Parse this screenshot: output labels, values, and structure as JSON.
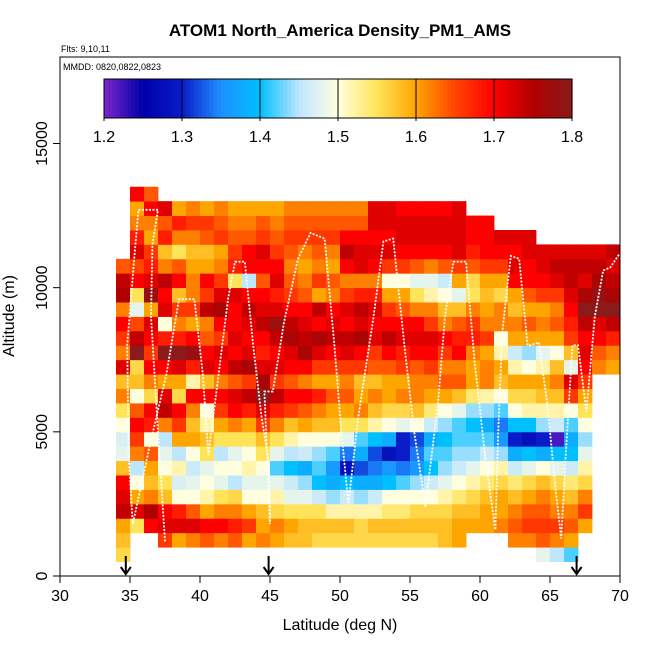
{
  "chart_data": {
    "type": "heatmap",
    "title": "ATOM1 North_America Density_PM1_AMS",
    "notes": [
      "Flts: 9,10,11",
      "MMDD: 0820,0822,0823"
    ],
    "xlabel": "Latitude (deg N)",
    "ylabel": "Altitude (m)",
    "xlim": [
      30,
      70
    ],
    "ylim": [
      0,
      18000
    ],
    "xticks": [
      30,
      35,
      40,
      45,
      50,
      55,
      60,
      65,
      70
    ],
    "yticks": [
      0,
      5000,
      10000,
      15000
    ],
    "colorbar": {
      "range": [
        1.2,
        1.8
      ],
      "ticks": [
        "1.2",
        "1.3",
        "1.4",
        "1.5",
        "1.6",
        "1.7",
        "1.8"
      ],
      "colors": [
        "#7d26cd",
        "#0000a8",
        "#0a1cc8",
        "#1e90ff",
        "#00bfff",
        "#bfe6ff",
        "#ffffe0",
        "#ffe45a",
        "#ffa500",
        "#ff4500",
        "#ff0000",
        "#b00000",
        "#8b1a1a"
      ]
    },
    "markers_lat": [
      34.7,
      44.9,
      66.9
    ],
    "bin_size": {
      "lat": 1,
      "alt": 500
    },
    "columns": [
      {
        "lat0": 34,
        "alt0": 500,
        "v": [
          1.56,
          1.58,
          1.6,
          1.74,
          1.72,
          1.7,
          1.58,
          1.48,
          1.47,
          1.5,
          1.55,
          1.62,
          1.58,
          1.72,
          1.62,
          1.66,
          1.7,
          1.62,
          1.75,
          1.74,
          1.64
        ]
      },
      {
        "lat0": 35,
        "alt0": 1500,
        "v": [
          1.55,
          1.72,
          1.6,
          1.5,
          1.45,
          1.62,
          1.66,
          1.7,
          1.64,
          1.5,
          1.58,
          1.56,
          1.8,
          1.74,
          1.65,
          1.48,
          1.55,
          1.7,
          1.65,
          1.72,
          1.68,
          1.62,
          1.6,
          1.7
        ]
      },
      {
        "lat0": 36,
        "alt0": 1500,
        "v": [
          1.7,
          1.75,
          1.62,
          1.58,
          1.6,
          1.64,
          1.5,
          1.68,
          1.7,
          1.56,
          1.62,
          1.7,
          1.66,
          1.7,
          1.72,
          1.6,
          1.78,
          1.72,
          1.68,
          1.66,
          1.6,
          1.62,
          1.7,
          1.64
        ]
      },
      {
        "lat0": 37,
        "alt0": 1000,
        "v": [
          1.66,
          1.72,
          1.7,
          1.58,
          1.55,
          1.5,
          1.48,
          1.45,
          1.62,
          1.74,
          1.72,
          1.6,
          1.7,
          1.82,
          1.68,
          1.5,
          1.72,
          1.7,
          1.74,
          1.62,
          1.58,
          1.68,
          1.64,
          1.72
        ]
      },
      {
        "lat0": 38,
        "alt0": 1000,
        "v": [
          1.6,
          1.72,
          1.68,
          1.5,
          1.47,
          1.52,
          1.45,
          1.6,
          1.66,
          1.7,
          1.56,
          1.6,
          1.72,
          1.8,
          1.68,
          1.62,
          1.66,
          1.58,
          1.7,
          1.64,
          1.55,
          1.62,
          1.68,
          1.6
        ]
      },
      {
        "lat0": 39,
        "alt0": 1000,
        "v": [
          1.62,
          1.72,
          1.64,
          1.5,
          1.48,
          1.46,
          1.5,
          1.6,
          1.58,
          1.62,
          1.7,
          1.52,
          1.68,
          1.78,
          1.7,
          1.6,
          1.66,
          1.62,
          1.62,
          1.6,
          1.58,
          1.62,
          1.66,
          1.62
        ]
      },
      {
        "lat0": 40,
        "alt0": 1000,
        "v": [
          1.64,
          1.7,
          1.6,
          1.52,
          1.5,
          1.48,
          1.55,
          1.58,
          1.52,
          1.5,
          1.7,
          1.58,
          1.72,
          1.7,
          1.64,
          1.62,
          1.74,
          1.66,
          1.7,
          1.6,
          1.58,
          1.64,
          1.66,
          1.6
        ]
      },
      {
        "lat0": 41,
        "alt0": 1000,
        "v": [
          1.62,
          1.7,
          1.62,
          1.55,
          1.48,
          1.5,
          1.45,
          1.55,
          1.6,
          1.66,
          1.7,
          1.62,
          1.7,
          1.72,
          1.66,
          1.7,
          1.76,
          1.72,
          1.66,
          1.62,
          1.6,
          1.66,
          1.64,
          1.62
        ]
      },
      {
        "lat0": 42,
        "alt0": 1000,
        "v": [
          1.64,
          1.68,
          1.62,
          1.56,
          1.45,
          1.5,
          1.48,
          1.55,
          1.62,
          1.7,
          1.72,
          1.64,
          1.74,
          1.7,
          1.72,
          1.7,
          1.7,
          1.72,
          1.55,
          1.68,
          1.66,
          1.64,
          1.62,
          1.6
        ]
      },
      {
        "lat0": 43,
        "alt0": 1000,
        "v": [
          1.6,
          1.66,
          1.6,
          1.5,
          1.48,
          1.52,
          1.5,
          1.55,
          1.6,
          1.68,
          1.74,
          1.66,
          1.76,
          1.72,
          1.7,
          1.72,
          1.74,
          1.7,
          1.45,
          1.7,
          1.7,
          1.64,
          1.62,
          1.6
        ]
      },
      {
        "lat0": 44,
        "alt0": 1000,
        "v": [
          1.62,
          1.6,
          1.58,
          1.5,
          1.48,
          1.5,
          1.55,
          1.58,
          1.66,
          1.72,
          1.8,
          1.76,
          1.72,
          1.68,
          1.7,
          1.74,
          1.72,
          1.7,
          1.64,
          1.7,
          1.72,
          1.66,
          1.64,
          1.6
        ]
      },
      {
        "lat0": 45,
        "alt0": 1000,
        "v": [
          1.6,
          1.62,
          1.56,
          1.52,
          1.48,
          1.42,
          1.48,
          1.55,
          1.62,
          1.68,
          1.74,
          1.66,
          1.72,
          1.7,
          1.74,
          1.78,
          1.72,
          1.68,
          1.72,
          1.7,
          1.66,
          1.64,
          1.62,
          1.6
        ]
      },
      {
        "lat0": 46,
        "alt0": 1000,
        "v": [
          1.58,
          1.6,
          1.55,
          1.48,
          1.46,
          1.4,
          1.45,
          1.52,
          1.58,
          1.66,
          1.7,
          1.64,
          1.7,
          1.72,
          1.76,
          1.74,
          1.7,
          1.66,
          1.64,
          1.62,
          1.64,
          1.66,
          1.64,
          1.62
        ]
      },
      {
        "lat0": 47,
        "alt0": 1000,
        "v": [
          1.58,
          1.58,
          1.55,
          1.48,
          1.44,
          1.38,
          1.46,
          1.5,
          1.6,
          1.64,
          1.7,
          1.62,
          1.7,
          1.76,
          1.74,
          1.72,
          1.7,
          1.64,
          1.62,
          1.6,
          1.62,
          1.66,
          1.64,
          1.62
        ]
      },
      {
        "lat0": 48,
        "alt0": 1000,
        "v": [
          1.56,
          1.58,
          1.55,
          1.46,
          1.4,
          1.42,
          1.44,
          1.5,
          1.58,
          1.62,
          1.68,
          1.6,
          1.66,
          1.72,
          1.76,
          1.7,
          1.74,
          1.6,
          1.66,
          1.62,
          1.64,
          1.66,
          1.64,
          1.62
        ]
      },
      {
        "lat0": 49,
        "alt0": 1000,
        "v": [
          1.56,
          1.58,
          1.52,
          1.44,
          1.38,
          1.36,
          1.42,
          1.5,
          1.58,
          1.6,
          1.64,
          1.6,
          1.66,
          1.7,
          1.74,
          1.72,
          1.7,
          1.62,
          1.64,
          1.6,
          1.62,
          1.66,
          1.64,
          1.62
        ]
      },
      {
        "lat0": 50,
        "alt0": 1000,
        "v": [
          1.56,
          1.58,
          1.52,
          1.46,
          1.4,
          1.28,
          1.34,
          1.48,
          1.55,
          1.6,
          1.64,
          1.62,
          1.66,
          1.72,
          1.74,
          1.7,
          1.72,
          1.66,
          1.62,
          1.7,
          1.74,
          1.7,
          1.64,
          1.62
        ]
      },
      {
        "lat0": 51,
        "alt0": 1000,
        "v": [
          1.56,
          1.56,
          1.52,
          1.44,
          1.38,
          1.32,
          1.38,
          1.42,
          1.55,
          1.62,
          1.6,
          1.58,
          1.66,
          1.7,
          1.76,
          1.72,
          1.74,
          1.68,
          1.62,
          1.72,
          1.72,
          1.7,
          1.64,
          1.62
        ]
      },
      {
        "lat0": 52,
        "alt0": 1000,
        "v": [
          1.56,
          1.58,
          1.52,
          1.46,
          1.38,
          1.34,
          1.32,
          1.4,
          1.52,
          1.58,
          1.62,
          1.58,
          1.64,
          1.66,
          1.72,
          1.7,
          1.72,
          1.68,
          1.62,
          1.7,
          1.72,
          1.7,
          1.72,
          1.72
        ]
      },
      {
        "lat0": 53,
        "alt0": 1000,
        "v": [
          1.56,
          1.58,
          1.54,
          1.5,
          1.4,
          1.36,
          1.28,
          1.38,
          1.5,
          1.56,
          1.6,
          1.6,
          1.64,
          1.7,
          1.74,
          1.7,
          1.66,
          1.6,
          1.5,
          1.66,
          1.72,
          1.7,
          1.72,
          1.72
        ]
      },
      {
        "lat0": 54,
        "alt0": 1000,
        "v": [
          1.56,
          1.58,
          1.54,
          1.5,
          1.42,
          1.34,
          1.3,
          1.3,
          1.48,
          1.56,
          1.62,
          1.6,
          1.66,
          1.68,
          1.72,
          1.7,
          1.64,
          1.6,
          1.5,
          1.66,
          1.7,
          1.72,
          1.72,
          1.7
        ]
      },
      {
        "lat0": 55,
        "alt0": 1000,
        "v": [
          1.56,
          1.58,
          1.56,
          1.5,
          1.44,
          1.36,
          1.34,
          1.32,
          1.5,
          1.58,
          1.62,
          1.62,
          1.64,
          1.7,
          1.72,
          1.7,
          1.62,
          1.55,
          1.48,
          1.64,
          1.7,
          1.72,
          1.72,
          1.7
        ]
      },
      {
        "lat0": 56,
        "alt0": 1000,
        "v": [
          1.56,
          1.58,
          1.56,
          1.5,
          1.46,
          1.4,
          1.42,
          1.38,
          1.46,
          1.54,
          1.6,
          1.62,
          1.66,
          1.7,
          1.72,
          1.66,
          1.62,
          1.52,
          1.48,
          1.62,
          1.7,
          1.72,
          1.72,
          1.7
        ]
      },
      {
        "lat0": 57,
        "alt0": 1000,
        "v": [
          1.58,
          1.58,
          1.56,
          1.52,
          1.48,
          1.44,
          1.42,
          1.4,
          1.44,
          1.5,
          1.6,
          1.64,
          1.62,
          1.66,
          1.7,
          1.62,
          1.58,
          1.5,
          1.46,
          1.64,
          1.7,
          1.72,
          1.72,
          1.7
        ]
      },
      {
        "lat0": 58,
        "alt0": 1000,
        "v": [
          1.6,
          1.6,
          1.58,
          1.54,
          1.5,
          1.46,
          1.44,
          1.42,
          1.42,
          1.48,
          1.58,
          1.64,
          1.62,
          1.7,
          1.68,
          1.64,
          1.58,
          1.48,
          1.6,
          1.66,
          1.72,
          1.72,
          1.72,
          1.72
        ]
      },
      {
        "lat0": 59,
        "alt0": 1500,
        "v": [
          1.6,
          1.58,
          1.56,
          1.52,
          1.48,
          1.44,
          1.42,
          1.4,
          1.44,
          1.54,
          1.6,
          1.6,
          1.62,
          1.68,
          1.66,
          1.62,
          1.55,
          1.56,
          1.64,
          1.68,
          1.7,
          1.7
        ]
      },
      {
        "lat0": 60,
        "alt0": 1500,
        "v": [
          1.6,
          1.6,
          1.58,
          1.54,
          1.5,
          1.46,
          1.42,
          1.38,
          1.44,
          1.52,
          1.62,
          1.62,
          1.6,
          1.66,
          1.62,
          1.6,
          1.58,
          1.6,
          1.66,
          1.7,
          1.7,
          1.7
        ]
      },
      {
        "lat0": 61,
        "alt0": 1500,
        "v": [
          1.62,
          1.6,
          1.6,
          1.56,
          1.52,
          1.44,
          1.36,
          1.34,
          1.42,
          1.5,
          1.58,
          1.6,
          1.52,
          1.5,
          1.62,
          1.62,
          1.56,
          1.6,
          1.66,
          1.7,
          1.72
        ]
      },
      {
        "lat0": 62,
        "alt0": 1000,
        "v": [
          1.62,
          1.64,
          1.62,
          1.58,
          1.54,
          1.46,
          1.38,
          1.3,
          1.4,
          1.5,
          1.56,
          1.6,
          1.52,
          1.46,
          1.6,
          1.62,
          1.58,
          1.6,
          1.7,
          1.72,
          1.7,
          1.72
        ]
      },
      {
        "lat0": 63,
        "alt0": 1000,
        "v": [
          1.62,
          1.66,
          1.64,
          1.6,
          1.56,
          1.48,
          1.4,
          1.28,
          1.4,
          1.52,
          1.56,
          1.6,
          1.5,
          1.44,
          1.6,
          1.64,
          1.6,
          1.64,
          1.7,
          1.7,
          1.72,
          1.72
        ]
      },
      {
        "lat0": 64,
        "alt0": 500,
        "v": [
          1.48,
          1.64,
          1.66,
          1.64,
          1.62,
          1.58,
          1.5,
          1.38,
          1.3,
          1.44,
          1.52,
          1.58,
          1.6,
          1.52,
          1.48,
          1.6,
          1.62,
          1.6,
          1.66,
          1.7,
          1.72,
          1.72
        ]
      },
      {
        "lat0": 65,
        "alt0": 500,
        "v": [
          1.45,
          1.62,
          1.66,
          1.62,
          1.6,
          1.56,
          1.48,
          1.4,
          1.22,
          1.46,
          1.52,
          1.58,
          1.62,
          1.58,
          1.5,
          1.6,
          1.64,
          1.62,
          1.66,
          1.72,
          1.74,
          1.72
        ]
      },
      {
        "lat0": 66,
        "alt0": 500,
        "v": [
          1.42,
          1.6,
          1.64,
          1.62,
          1.58,
          1.54,
          1.46,
          1.4,
          1.38,
          1.42,
          1.5,
          1.66,
          1.72,
          1.48,
          1.58,
          1.66,
          1.68,
          1.7,
          1.72,
          1.74,
          1.74,
          1.72
        ]
      },
      {
        "lat0": 67,
        "alt0": 1500,
        "v": [
          1.6,
          1.66,
          1.62,
          1.56,
          1.52,
          1.48,
          1.44,
          1.5,
          1.55,
          1.6,
          1.66,
          1.7,
          1.72,
          1.7,
          1.74,
          1.8,
          1.76,
          1.72,
          1.74,
          1.72
        ]
      },
      {
        "lat0": 68,
        "alt0": 7000,
        "v": [
          1.62,
          1.64,
          1.7,
          1.72,
          1.8,
          1.78,
          1.76,
          1.74,
          1.72
        ]
      },
      {
        "lat0": 69,
        "alt0": 7000,
        "v": [
          1.6,
          1.62,
          1.68,
          1.74,
          1.8,
          1.76,
          1.74,
          1.72,
          1.74
        ]
      }
    ],
    "flight_track": [
      [
        37.5,
        1200
      ],
      [
        37.0,
        5000
      ],
      [
        36.5,
        9000
      ],
      [
        36.6,
        11500
      ],
      [
        37.0,
        12700
      ],
      [
        35.6,
        12700
      ],
      [
        35.3,
        11000
      ],
      [
        34.8,
        8000
      ],
      [
        34.9,
        4200
      ],
      [
        35.2,
        1800
      ],
      [
        36.4,
        4500
      ],
      [
        37.6,
        7000
      ],
      [
        38.5,
        9600
      ],
      [
        39.6,
        9600
      ],
      [
        40.2,
        7000
      ],
      [
        40.6,
        4200
      ],
      [
        41.2,
        6500
      ],
      [
        42.0,
        9600
      ],
      [
        42.5,
        10900
      ],
      [
        43.2,
        10900
      ],
      [
        43.8,
        8000
      ],
      [
        44.4,
        5500
      ],
      [
        44.9,
        4000
      ],
      [
        45.0,
        1800
      ],
      [
        44.6,
        6400
      ],
      [
        45.2,
        6400
      ],
      [
        46.0,
        8800
      ],
      [
        47.0,
        11000
      ],
      [
        47.9,
        11900
      ],
      [
        48.9,
        11700
      ],
      [
        49.6,
        8000
      ],
      [
        50.1,
        5000
      ],
      [
        50.6,
        2500
      ],
      [
        51.3,
        5500
      ],
      [
        52.4,
        9000
      ],
      [
        53.1,
        11600
      ],
      [
        53.8,
        11700
      ],
      [
        54.6,
        8000
      ],
      [
        55.3,
        5000
      ],
      [
        56.1,
        2400
      ],
      [
        57.0,
        6000
      ],
      [
        57.5,
        9000
      ],
      [
        58.1,
        10900
      ],
      [
        59.0,
        10900
      ],
      [
        59.6,
        7500
      ],
      [
        60.4,
        4000
      ],
      [
        61.1,
        1600
      ],
      [
        61.3,
        5000
      ],
      [
        61.6,
        8500
      ],
      [
        62.2,
        11100
      ],
      [
        62.8,
        11000
      ],
      [
        63.4,
        8000
      ],
      [
        63.6,
        8000
      ],
      [
        64.2,
        8100
      ],
      [
        64.8,
        6000
      ],
      [
        65.4,
        3000
      ],
      [
        65.8,
        1300
      ],
      [
        66.1,
        4000
      ],
      [
        66.6,
        8000
      ],
      [
        67.0,
        8000
      ],
      [
        67.6,
        5700
      ],
      [
        68.2,
        9000
      ],
      [
        68.8,
        10600
      ],
      [
        69.3,
        10700
      ],
      [
        70.0,
        11200
      ]
    ]
  }
}
